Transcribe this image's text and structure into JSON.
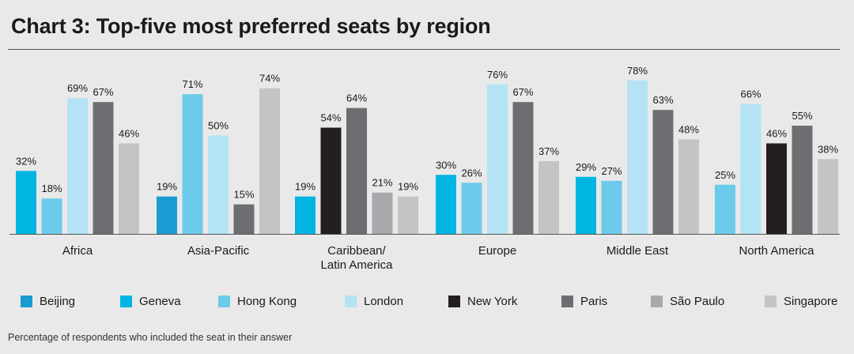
{
  "chart_data": {
    "type": "bar",
    "title": "Chart 3: Top-five most preferred seats by region",
    "ylim": [
      0,
      85
    ],
    "value_format": "percent",
    "legend_position": "bottom",
    "grid": false,
    "series_colors": {
      "Beijing": "#1b9bd1",
      "Geneva": "#00b5e2",
      "Hong Kong": "#6ccbea",
      "London": "#b3e3f4",
      "New York": "#231f20",
      "Paris": "#6d6e71",
      "São Paulo": "#a7a9ac",
      "Singapore": "#c3c4c6"
    },
    "legend": [
      "Beijing",
      "Geneva",
      "Hong Kong",
      "London",
      "New York",
      "Paris",
      "São Paulo",
      "Singapore"
    ],
    "groups": [
      {
        "region": "Africa",
        "bars": [
          {
            "seat": "Geneva",
            "value": 32
          },
          {
            "seat": "Hong Kong",
            "value": 18
          },
          {
            "seat": "London",
            "value": 69
          },
          {
            "seat": "Paris",
            "value": 67
          },
          {
            "seat": "Singapore",
            "value": 46
          }
        ]
      },
      {
        "region": "Asia-Pacific",
        "bars": [
          {
            "seat": "Beijing",
            "value": 19
          },
          {
            "seat": "Hong Kong",
            "value": 71
          },
          {
            "seat": "London",
            "value": 50
          },
          {
            "seat": "Paris",
            "value": 15
          },
          {
            "seat": "Singapore",
            "value": 74
          }
        ]
      },
      {
        "region": "Caribbean/ Latin America",
        "bars": [
          {
            "seat": "Geneva",
            "value": 19
          },
          {
            "seat": "New York",
            "value": 54
          },
          {
            "seat": "Paris",
            "value": 64
          },
          {
            "seat": "São Paulo",
            "value": 21
          },
          {
            "seat": "Singapore",
            "value": 19
          }
        ]
      },
      {
        "region": "Europe",
        "bars": [
          {
            "seat": "Geneva",
            "value": 30
          },
          {
            "seat": "Hong Kong",
            "value": 26
          },
          {
            "seat": "London",
            "value": 76
          },
          {
            "seat": "Paris",
            "value": 67
          },
          {
            "seat": "Singapore",
            "value": 37
          }
        ]
      },
      {
        "region": "Middle East",
        "bars": [
          {
            "seat": "Geneva",
            "value": 29
          },
          {
            "seat": "Hong Kong",
            "value": 27
          },
          {
            "seat": "London",
            "value": 78
          },
          {
            "seat": "Paris",
            "value": 63
          },
          {
            "seat": "Singapore",
            "value": 48
          }
        ]
      },
      {
        "region": "North America",
        "bars": [
          {
            "seat": "Hong Kong",
            "value": 25
          },
          {
            "seat": "London",
            "value": 66
          },
          {
            "seat": "New York",
            "value": 46
          },
          {
            "seat": "Paris",
            "value": 55
          },
          {
            "seat": "Singapore",
            "value": 38
          }
        ]
      }
    ]
  },
  "footnote": "Percentage of respondents who included the seat in their answer"
}
